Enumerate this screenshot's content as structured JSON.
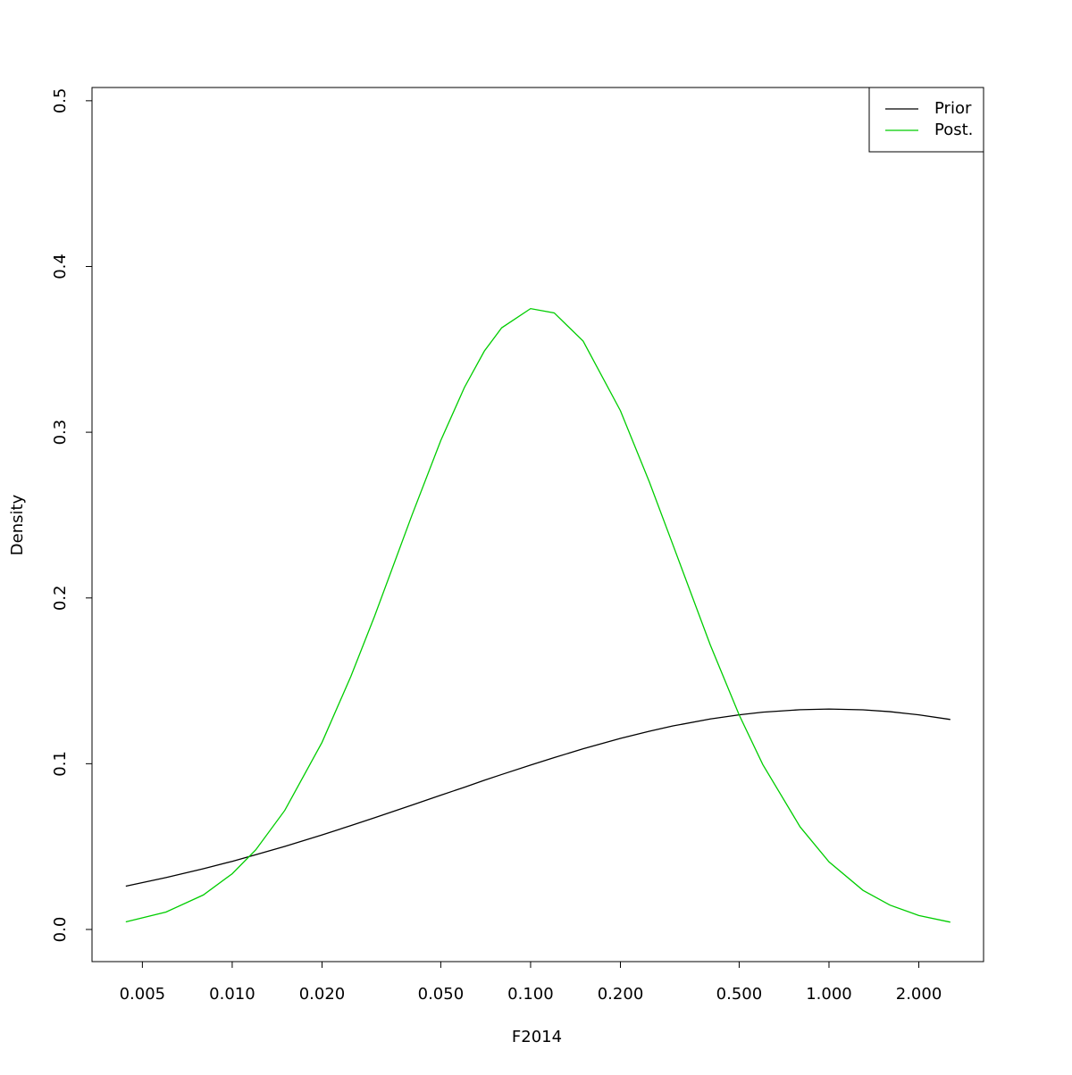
{
  "chart_data": {
    "type": "line",
    "xlabel": "F2014",
    "ylabel": "Density",
    "xlog": true,
    "x": [
      0.0044,
      0.006,
      0.008,
      0.01,
      0.012,
      0.015,
      0.02,
      0.025,
      0.03,
      0.04,
      0.05,
      0.06,
      0.07,
      0.08,
      0.1,
      0.12,
      0.15,
      0.2,
      0.25,
      0.3,
      0.4,
      0.5,
      0.6,
      0.8,
      1,
      1.3,
      1.6,
      2,
      2.55
    ],
    "series": [
      {
        "name": "Prior",
        "color": "#000000",
        "values": [
          0.0261,
          0.0313,
          0.0366,
          0.0411,
          0.0451,
          0.0501,
          0.057,
          0.0627,
          0.0674,
          0.075,
          0.081,
          0.0858,
          0.09,
          0.0935,
          0.0992,
          0.1037,
          0.109,
          0.1153,
          0.1196,
          0.1228,
          0.127,
          0.1295,
          0.1311,
          0.1326,
          0.133,
          0.1325,
          0.1314,
          0.1295,
          0.1267
        ]
      },
      {
        "name": "Post.",
        "color": "#00cd00",
        "values": [
          0.0046,
          0.0105,
          0.0208,
          0.0336,
          0.0481,
          0.0718,
          0.1129,
          0.1528,
          0.189,
          0.2498,
          0.295,
          0.327,
          0.349,
          0.363,
          0.3746,
          0.372,
          0.355,
          0.313,
          0.27,
          0.232,
          0.1717,
          0.1294,
          0.0995,
          0.0619,
          0.0408,
          0.0236,
          0.0147,
          0.0084,
          0.0044
        ]
      }
    ],
    "xlim": [
      0.00339,
      3.296
    ],
    "ylim": [
      -0.0194,
      0.508
    ],
    "xticks": [
      0.005,
      {
        "value": 0.01,
        "label": "0.010"
      },
      {
        "value": 0.02,
        "label": "0.020"
      },
      {
        "value": 0.05,
        "label": "0.050"
      },
      {
        "value": 0.1,
        "label": "0.100"
      },
      {
        "value": 0.2,
        "label": "0.200"
      },
      {
        "value": 0.5,
        "label": "0.500"
      },
      {
        "value": 1,
        "label": "1.000"
      },
      {
        "value": 2,
        "label": "2.000"
      }
    ],
    "yticks": [
      {
        "value": 0,
        "label": "0.0"
      },
      0.1,
      0.2,
      0.3,
      0.4,
      0.5
    ],
    "legend": "top-right"
  }
}
